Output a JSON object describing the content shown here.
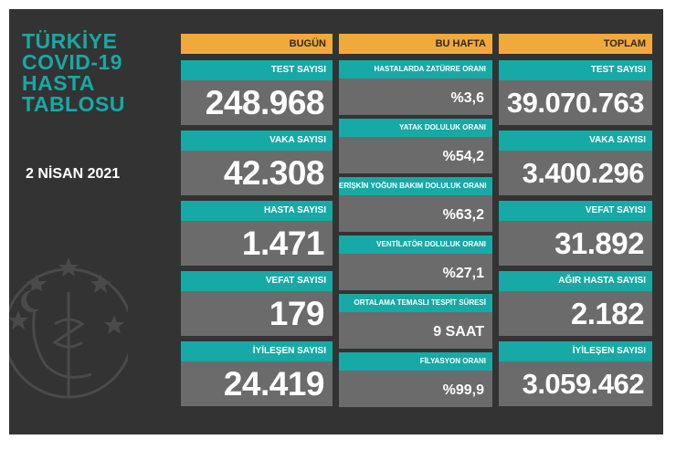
{
  "title_lines": [
    "TÜRKİYE",
    "COVID-19",
    "HASTA",
    "TABLOSU"
  ],
  "date": "2 NİSAN 2021",
  "columns": {
    "today": "BUGÜN",
    "week": "BU HAFTA",
    "total": "TOPLAM"
  },
  "today": [
    {
      "label": "TEST SAYISI",
      "value": "248.968"
    },
    {
      "label": "VAKA SAYISI",
      "value": "42.308"
    },
    {
      "label": "HASTA SAYISI",
      "value": "1.471"
    },
    {
      "label": "VEFAT SAYISI",
      "value": "179"
    },
    {
      "label": "İYİLEŞEN SAYISI",
      "value": "24.419"
    }
  ],
  "week": [
    {
      "label": "HASTALARDA ZATÜRRE ORANI",
      "value": "%3,6"
    },
    {
      "label": "YATAK DOLULUK ORANI",
      "value": "%54,2"
    },
    {
      "label": "ERİŞKİN YOĞUN BAKIM DOLULUK ORANI",
      "value": "%63,2"
    },
    {
      "label": "VENTİLATÖR DOLULUK ORANI",
      "value": "%27,1"
    },
    {
      "label": "ORTALAMA TEMASLI TESPİT SÜRESİ",
      "value": "9 SAAT"
    },
    {
      "label": "FİLYASYON ORANI",
      "value": "%99,9"
    }
  ],
  "total": [
    {
      "label": "TEST SAYISI",
      "value": "39.070.763"
    },
    {
      "label": "VAKA SAYISI",
      "value": "3.400.296"
    },
    {
      "label": "VEFAT SAYISI",
      "value": "31.892"
    },
    {
      "label": "AĞIR HASTA SAYISI",
      "value": "2.182"
    },
    {
      "label": "İYİLEŞEN SAYISI",
      "value": "3.059.462"
    }
  ],
  "colors": {
    "background": "#333333",
    "teal": "#17a9a5",
    "orange": "#f2a93b",
    "value_box": "#6b6b6b"
  },
  "icons": [
    "ministry-emblem-icon"
  ]
}
